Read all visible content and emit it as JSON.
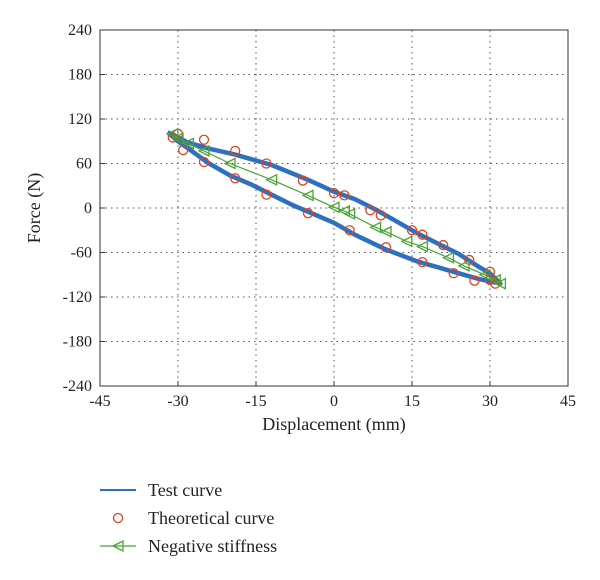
{
  "chart_data": {
    "type": "line",
    "xlabel": "Displacement (mm)",
    "ylabel": "Force (N)",
    "xlim": [
      -45,
      45
    ],
    "ylim": [
      -240,
      240
    ],
    "xticks": [
      -45,
      -30,
      -15,
      0,
      15,
      30,
      45
    ],
    "yticks": [
      -240,
      -180,
      -120,
      -60,
      0,
      60,
      120,
      180,
      240
    ],
    "grid": true,
    "legend_position": "below",
    "series": [
      {
        "name": "Test curve",
        "style": "line",
        "color": "#2f6fc0",
        "points": [
          [
            -32,
            102
          ],
          [
            -28,
            88
          ],
          [
            -24,
            80
          ],
          [
            -19,
            72
          ],
          [
            -12,
            58
          ],
          [
            -5,
            38
          ],
          [
            0,
            22
          ],
          [
            4,
            12
          ],
          [
            8,
            -2
          ],
          [
            12,
            -18
          ],
          [
            16,
            -34
          ],
          [
            20,
            -48
          ],
          [
            24,
            -62
          ],
          [
            28,
            -80
          ],
          [
            30,
            -88
          ],
          [
            32,
            -102
          ],
          [
            28,
            -96
          ],
          [
            24,
            -88
          ],
          [
            20,
            -80
          ],
          [
            16,
            -72
          ],
          [
            10,
            -56
          ],
          [
            4,
            -36
          ],
          [
            0,
            -20
          ],
          [
            -4,
            -8
          ],
          [
            -8,
            4
          ],
          [
            -12,
            18
          ],
          [
            -16,
            32
          ],
          [
            -20,
            44
          ],
          [
            -24,
            60
          ],
          [
            -28,
            80
          ],
          [
            -30,
            90
          ],
          [
            -32,
            102
          ]
        ]
      },
      {
        "name": "Theoretical curve",
        "style": "markers",
        "marker": "circle",
        "color": "#e0431c",
        "points": [
          [
            -30,
            100
          ],
          [
            -25,
            92
          ],
          [
            -19,
            77
          ],
          [
            -13,
            60
          ],
          [
            -6,
            37
          ],
          [
            0,
            20
          ],
          [
            2,
            17
          ],
          [
            7,
            -3
          ],
          [
            9,
            -10
          ],
          [
            15,
            -30
          ],
          [
            17,
            -36
          ],
          [
            21,
            -50
          ],
          [
            26,
            -70
          ],
          [
            30,
            -86
          ],
          [
            31,
            -102
          ],
          [
            30,
            -97
          ],
          [
            27,
            -98
          ],
          [
            23,
            -88
          ],
          [
            17,
            -73
          ],
          [
            10,
            -53
          ],
          [
            3,
            -30
          ],
          [
            -5,
            -7
          ],
          [
            -13,
            18
          ],
          [
            -19,
            40
          ],
          [
            -25,
            62
          ],
          [
            -29,
            78
          ],
          [
            -31,
            95
          ]
        ]
      },
      {
        "name": "Negative stiffness",
        "style": "line-markers",
        "marker": "triangle-left",
        "color": "#4aa335",
        "points": [
          [
            -31,
            100
          ],
          [
            -30,
            94
          ],
          [
            -28,
            87
          ],
          [
            -25,
            77
          ],
          [
            -20,
            60
          ],
          [
            -12,
            38
          ],
          [
            -5,
            17
          ],
          [
            0,
            1
          ],
          [
            2,
            -4
          ],
          [
            3,
            -8
          ],
          [
            8,
            -26
          ],
          [
            10,
            -32
          ],
          [
            14,
            -45
          ],
          [
            17,
            -52
          ],
          [
            22,
            -67
          ],
          [
            25,
            -78
          ],
          [
            29,
            -90
          ],
          [
            31,
            -97
          ],
          [
            32,
            -102
          ]
        ]
      }
    ]
  }
}
